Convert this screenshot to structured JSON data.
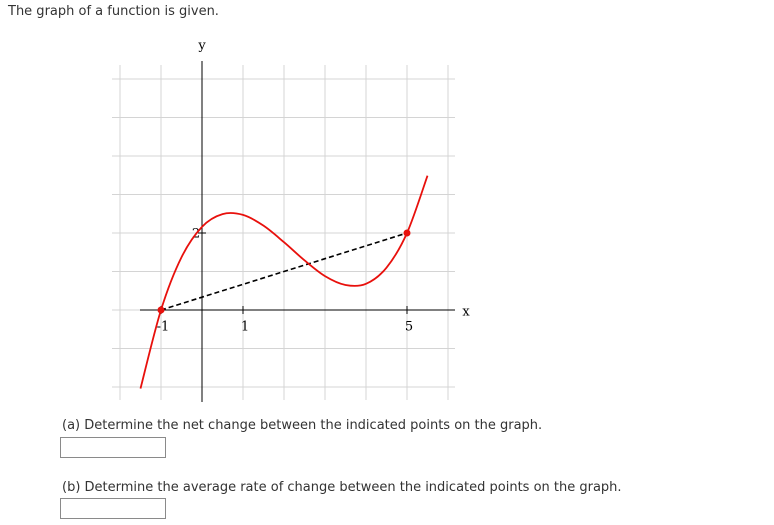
{
  "prompt": "The graph of a function is given.",
  "chart_data": {
    "type": "line",
    "xlabel": "x",
    "ylabel": "y",
    "xlim": [
      -2,
      6
    ],
    "ylim": [
      -2,
      6
    ],
    "xticks": [
      -1,
      1,
      5
    ],
    "yticks": [
      2
    ],
    "grid": true,
    "xgrid": [
      -2,
      -1,
      0,
      1,
      2,
      3,
      4,
      5,
      6
    ],
    "ygrid": [
      -2,
      -1,
      0,
      1,
      2,
      3,
      4,
      5,
      6
    ],
    "x": [
      -1.5,
      -1,
      -0.5,
      0,
      0.5,
      1,
      1.5,
      2,
      2.5,
      3,
      3.5,
      4,
      4.5,
      5,
      5.5
    ],
    "series": [
      {
        "color": "#e8100c",
        "values": [
          -2.04,
          0,
          1.37,
          2.16,
          2.49,
          2.47,
          2.19,
          1.76,
          1.29,
          0.88,
          0.65,
          0.68,
          1.1,
          2,
          3.49
        ]
      }
    ],
    "points": {
      "x": [
        -1,
        5
      ],
      "values": [
        0,
        2
      ],
      "color": "#e8100c"
    }
  },
  "questions": [
    {
      "text": "(a) Determine the net change between the indicated points on the graph."
    },
    {
      "text": "(b) Determine the average rate of change between the indicated points on the graph."
    }
  ]
}
